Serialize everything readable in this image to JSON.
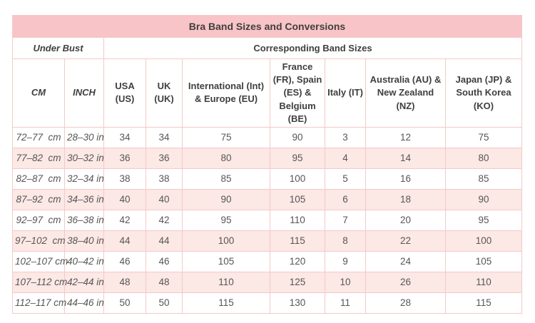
{
  "title": "Bra Band Sizes and Conversions",
  "table": {
    "group_headers": {
      "under_bust": "Under Bust",
      "corresponding": "Corresponding Band Sizes"
    },
    "columns": [
      "CM",
      "INCH",
      "USA (US)",
      "UK (UK)",
      "International (Int) & Europe (EU)",
      "France (FR), Spain (ES) & Belgium (BE)",
      "Italy (IT)",
      "Australia (AU) & New Zealand (NZ)",
      "Japan (JP) & South Korea (KO)"
    ],
    "rows": [
      [
        "72–77  cm",
        "28–30 in",
        "34",
        "34",
        "75",
        "90",
        "3",
        "12",
        "75"
      ],
      [
        "77–82  cm",
        "30–32 in",
        "36",
        "36",
        "80",
        "95",
        "4",
        "14",
        "80"
      ],
      [
        "82–87  cm",
        "32–34 in",
        "38",
        "38",
        "85",
        "100",
        "5",
        "16",
        "85"
      ],
      [
        "87–92  cm",
        "34–36 in",
        "40",
        "40",
        "90",
        "105",
        "6",
        "18",
        "90"
      ],
      [
        "92–97  cm",
        "36–38 in",
        "42",
        "42",
        "95",
        "110",
        "7",
        "20",
        "95"
      ],
      [
        "97–102  cm",
        "38–40 in",
        "44",
        "44",
        "100",
        "115",
        "8",
        "22",
        "100"
      ],
      [
        "102–107 cm",
        "40–42 in",
        "46",
        "46",
        "105",
        "120",
        "9",
        "24",
        "105"
      ],
      [
        "107–112 cm",
        "42–44 in",
        "48",
        "48",
        "110",
        "125",
        "10",
        "26",
        "110"
      ],
      [
        "112–117 cm",
        "44–46 in",
        "50",
        "50",
        "115",
        "130",
        "11",
        "28",
        "115"
      ]
    ]
  },
  "colors": {
    "title_bg": "#f9c4c7",
    "stripe_bg": "#fce8e5",
    "border": "#f3c9c9",
    "header_text": "#3f3f3f",
    "body_text": "#565656"
  }
}
